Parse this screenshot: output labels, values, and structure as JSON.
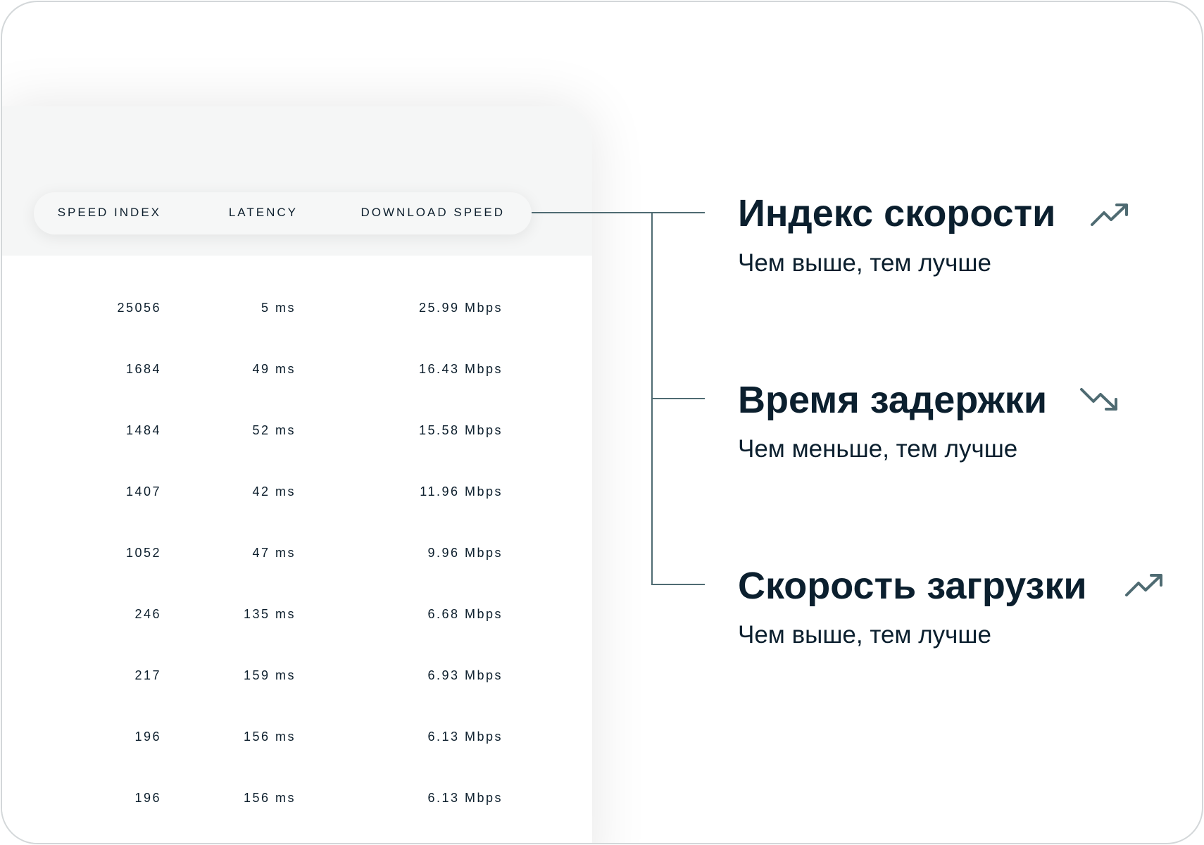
{
  "table": {
    "headers": [
      "SPEED INDEX",
      "LATENCY",
      "DOWNLOAD SPEED"
    ],
    "rows": [
      [
        "25056",
        "5 ms",
        "25.99 Mbps"
      ],
      [
        "1684",
        "49 ms",
        "16.43 Mbps"
      ],
      [
        "1484",
        "52 ms",
        "15.58 Mbps"
      ],
      [
        "1407",
        "42 ms",
        "11.96  Mbps"
      ],
      [
        "1052",
        "47 ms",
        "9.96 Mbps"
      ],
      [
        "246",
        "135 ms",
        "6.68 Mbps"
      ],
      [
        "217",
        "159 ms",
        "6.93 Mbps"
      ],
      [
        "196",
        "156 ms",
        "6.13 Mbps"
      ],
      [
        "196",
        "156 ms",
        "6.13 Mbps"
      ]
    ]
  },
  "legend": [
    {
      "title": "Индекс скорости",
      "subtitle": "Чем выше, тем лучше",
      "icon": "trend-up-icon"
    },
    {
      "title": "Время задержки",
      "subtitle": "Чем меньше, тем лучше",
      "icon": "trend-down-icon"
    },
    {
      "title": "Скорость загрузки",
      "subtitle": "Чем выше, тем лучше",
      "icon": "trend-up-icon"
    }
  ],
  "colors": {
    "text": "#0b1f2e",
    "connector": "#4f6b72",
    "header_bg": "#f5f6f6",
    "border": "#d3d7d9"
  }
}
